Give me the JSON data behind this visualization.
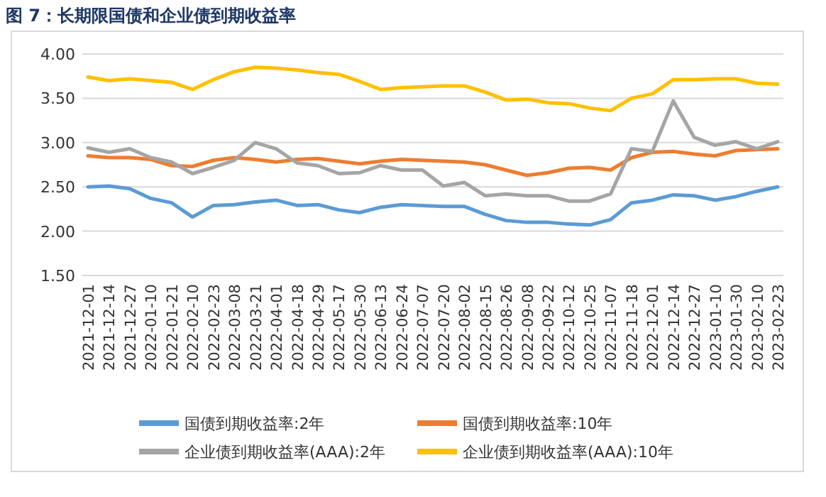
{
  "chart_data": {
    "type": "line",
    "title": "图 7：长期限国债和企业债到期收益率",
    "categories": [
      "2021-12-01",
      "2021-12-14",
      "2021-12-27",
      "2022-01-10",
      "2022-01-21",
      "2022-02-10",
      "2022-02-23",
      "2022-03-08",
      "2022-03-21",
      "2022-04-01",
      "2022-04-18",
      "2022-04-29",
      "2022-05-17",
      "2022-05-30",
      "2022-06-13",
      "2022-06-24",
      "2022-07-07",
      "2022-07-20",
      "2022-08-02",
      "2022-08-15",
      "2022-08-26",
      "2022-09-08",
      "2022-09-22",
      "2022-10-12",
      "2022-10-25",
      "2022-11-07",
      "2022-11-18",
      "2022-12-01",
      "2022-12-14",
      "2022-12-27",
      "2023-01-10",
      "2023-01-30",
      "2023-02-10",
      "2023-02-23"
    ],
    "series": [
      {
        "name": "国债到期收益率:2年",
        "color": "#5b9bd5",
        "values": [
          2.5,
          2.51,
          2.48,
          2.37,
          2.32,
          2.16,
          2.29,
          2.3,
          2.33,
          2.35,
          2.29,
          2.3,
          2.24,
          2.21,
          2.27,
          2.3,
          2.29,
          2.28,
          2.28,
          2.19,
          2.12,
          2.1,
          2.1,
          2.08,
          2.07,
          2.13,
          2.32,
          2.35,
          2.41,
          2.4,
          2.35,
          2.39,
          2.45,
          2.5
        ]
      },
      {
        "name": "国债到期收益率:10年",
        "color": "#ed7d31",
        "values": [
          2.85,
          2.83,
          2.83,
          2.81,
          2.74,
          2.73,
          2.8,
          2.83,
          2.81,
          2.78,
          2.81,
          2.82,
          2.79,
          2.76,
          2.79,
          2.81,
          2.8,
          2.79,
          2.78,
          2.75,
          2.69,
          2.63,
          2.66,
          2.71,
          2.72,
          2.69,
          2.83,
          2.89,
          2.9,
          2.87,
          2.85,
          2.91,
          2.92,
          2.93
        ]
      },
      {
        "name": "企业债到期收益率(AAA):2年",
        "color": "#a5a5a5",
        "values": [
          2.94,
          2.89,
          2.93,
          2.83,
          2.78,
          2.65,
          2.72,
          2.8,
          3.0,
          2.93,
          2.77,
          2.74,
          2.65,
          2.66,
          2.74,
          2.69,
          2.69,
          2.51,
          2.55,
          2.4,
          2.42,
          2.4,
          2.4,
          2.34,
          2.34,
          2.42,
          2.93,
          2.9,
          3.47,
          3.06,
          2.97,
          3.01,
          2.93,
          3.01
        ]
      },
      {
        "name": "企业债到期收益率(AAA):10年",
        "color": "#ffc000",
        "values": [
          3.74,
          3.7,
          3.72,
          3.7,
          3.68,
          3.6,
          3.71,
          3.8,
          3.85,
          3.84,
          3.82,
          3.79,
          3.77,
          3.69,
          3.6,
          3.62,
          3.63,
          3.64,
          3.64,
          3.57,
          3.48,
          3.49,
          3.45,
          3.44,
          3.39,
          3.36,
          3.5,
          3.55,
          3.71,
          3.71,
          3.72,
          3.72,
          3.67,
          3.66
        ]
      }
    ],
    "ylim": [
      1.5,
      4.0
    ],
    "yticks": [
      {
        "value": 1.5,
        "label": "1.50"
      },
      {
        "value": 2.0,
        "label": "2.00"
      },
      {
        "value": 2.5,
        "label": "2.50"
      },
      {
        "value": 3.0,
        "label": "3.00"
      },
      {
        "value": 3.5,
        "label": "3.50"
      },
      {
        "value": 4.0,
        "label": "4.00"
      }
    ],
    "grid": "y",
    "legend": "bottom"
  }
}
